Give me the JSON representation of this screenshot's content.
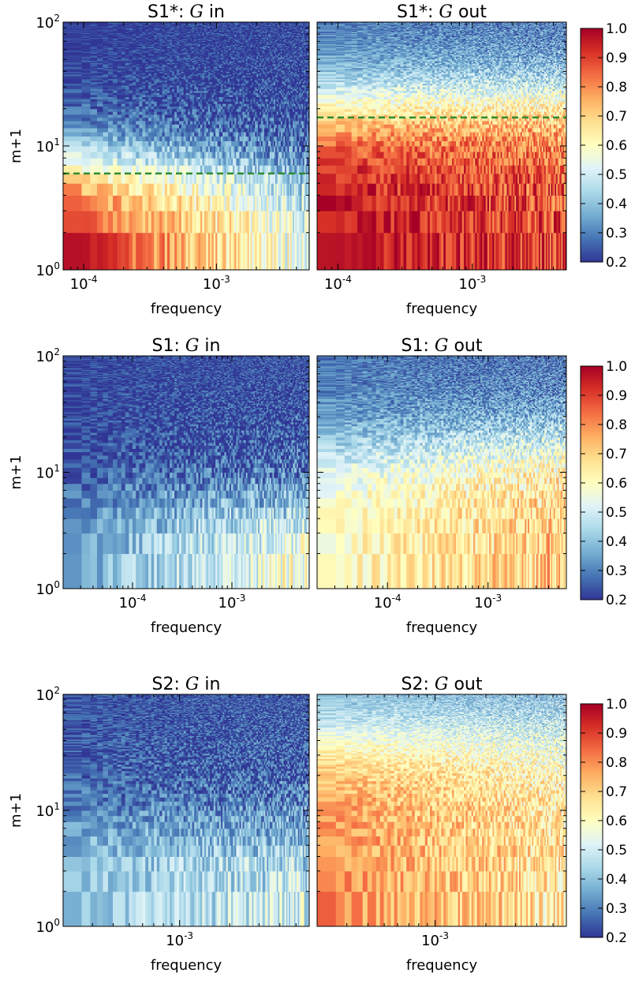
{
  "chart_data": [
    {
      "type": "heatmap",
      "row": "S1*",
      "title_prefix": "S1*:",
      "title_symbol": "G",
      "title_suffix": "in",
      "xlabel": "frequency",
      "ylabel": "m+1",
      "xscale": "log",
      "yscale": "log",
      "xlim": [
        7e-05,
        0.005
      ],
      "ylim": [
        1,
        100
      ],
      "x_ticks": [
        {
          "base": "10",
          "exp": "-4",
          "value": 0.0001
        },
        {
          "base": "10",
          "exp": "-3",
          "value": 0.001
        }
      ],
      "y_ticks": [
        {
          "base": "10",
          "exp": "0",
          "value": 1
        },
        {
          "base": "10",
          "exp": "1",
          "value": 10
        },
        {
          "base": "10",
          "exp": "2",
          "value": 100
        }
      ],
      "reference_line": {
        "y": 6,
        "style": "dashed",
        "color": "#2e8b2e"
      },
      "colormap": "RdYlBu_r",
      "clim": [
        0.2,
        1.0
      ],
      "value_model": {
        "low_m_value": 0.98,
        "low_m_value_high_freq": 0.55,
        "half_m": 7,
        "high_m_value": 0.2
      }
    },
    {
      "type": "heatmap",
      "row": "S1*",
      "title_prefix": "S1*:",
      "title_symbol": "G",
      "title_suffix": "out",
      "xlabel": "frequency",
      "xscale": "log",
      "yscale": "log",
      "xlim": [
        7e-05,
        0.005
      ],
      "ylim": [
        1,
        100
      ],
      "x_ticks": [
        {
          "base": "10",
          "exp": "-4",
          "value": 0.0001
        },
        {
          "base": "10",
          "exp": "-3",
          "value": 0.001
        }
      ],
      "reference_line": {
        "y": 17,
        "style": "dashed",
        "color": "#2e8b2e"
      },
      "colormap": "RdYlBu_r",
      "clim": [
        0.2,
        1.0
      ],
      "value_model": {
        "low_m_value": 0.97,
        "low_m_value_high_freq": 0.88,
        "half_m": 20,
        "high_m_value": 0.28
      }
    },
    {
      "type": "heatmap",
      "row": "S1",
      "title_prefix": "S1:",
      "title_symbol": "G",
      "title_suffix": "in",
      "xlabel": "frequency",
      "ylabel": "m+1",
      "xscale": "log",
      "yscale": "log",
      "xlim": [
        2e-05,
        0.006
      ],
      "ylim": [
        1,
        100
      ],
      "x_ticks": [
        {
          "base": "10",
          "exp": "-4",
          "value": 0.0001
        },
        {
          "base": "10",
          "exp": "-3",
          "value": 0.001
        }
      ],
      "y_ticks": [
        {
          "base": "10",
          "exp": "0",
          "value": 1
        },
        {
          "base": "10",
          "exp": "1",
          "value": 10
        },
        {
          "base": "10",
          "exp": "2",
          "value": 100
        }
      ],
      "colormap": "RdYlBu_r",
      "clim": [
        0.2,
        1.0
      ],
      "value_model": {
        "low_m_value": 0.35,
        "low_m_value_high_freq": 0.62,
        "half_m": 6,
        "high_m_value": 0.22
      }
    },
    {
      "type": "heatmap",
      "row": "S1",
      "title_prefix": "S1:",
      "title_symbol": "G",
      "title_suffix": "out",
      "xlabel": "frequency",
      "xscale": "log",
      "yscale": "log",
      "xlim": [
        2e-05,
        0.006
      ],
      "ylim": [
        1,
        100
      ],
      "x_ticks": [
        {
          "base": "10",
          "exp": "-4",
          "value": 0.0001
        },
        {
          "base": "10",
          "exp": "-3",
          "value": 0.001
        }
      ],
      "colormap": "RdYlBu_r",
      "clim": [
        0.2,
        1.0
      ],
      "value_model": {
        "low_m_value": 0.6,
        "low_m_value_high_freq": 0.72,
        "half_m": 16,
        "high_m_value": 0.28
      }
    },
    {
      "type": "heatmap",
      "row": "S2",
      "title_prefix": "S2:",
      "title_symbol": "G",
      "title_suffix": "in",
      "xlabel": "frequency",
      "ylabel": "m+1",
      "xscale": "log",
      "yscale": "log",
      "xlim": [
        0.0002,
        0.006
      ],
      "ylim": [
        1,
        100
      ],
      "x_ticks": [
        {
          "base": "10",
          "exp": "-3",
          "value": 0.001
        }
      ],
      "y_ticks": [
        {
          "base": "10",
          "exp": "0",
          "value": 1
        },
        {
          "base": "10",
          "exp": "1",
          "value": 10
        },
        {
          "base": "10",
          "exp": "2",
          "value": 100
        }
      ],
      "colormap": "RdYlBu_r",
      "clim": [
        0.2,
        1.0
      ],
      "value_model": {
        "low_m_value": 0.42,
        "low_m_value_high_freq": 0.5,
        "half_m": 8,
        "high_m_value": 0.24
      }
    },
    {
      "type": "heatmap",
      "row": "S2",
      "title_prefix": "S2:",
      "title_symbol": "G",
      "title_suffix": "out",
      "xlabel": "frequency",
      "xscale": "log",
      "yscale": "log",
      "xlim": [
        0.0002,
        0.006
      ],
      "ylim": [
        1,
        100
      ],
      "x_ticks": [
        {
          "base": "10",
          "exp": "-3",
          "value": 0.001
        }
      ],
      "colormap": "RdYlBu_r",
      "clim": [
        0.2,
        1.0
      ],
      "value_model": {
        "low_m_value": 0.8,
        "low_m_value_high_freq": 0.65,
        "half_m": 40,
        "high_m_value": 0.35
      }
    }
  ],
  "colorbar": {
    "ticks": [
      "1.0",
      "0.9",
      "0.8",
      "0.7",
      "0.6",
      "0.5",
      "0.4",
      "0.3",
      "0.2"
    ],
    "tick_values": [
      1.0,
      0.9,
      0.8,
      0.7,
      0.6,
      0.5,
      0.4,
      0.3,
      0.2
    ],
    "range": [
      0.2,
      1.0
    ],
    "colormap": "RdYlBu_r",
    "stops": [
      "#313695",
      "#4575b4",
      "#74add1",
      "#abd9e9",
      "#e0f3f8",
      "#ffffbf",
      "#fee090",
      "#fdae61",
      "#f46d43",
      "#d73027",
      "#a50026"
    ]
  }
}
